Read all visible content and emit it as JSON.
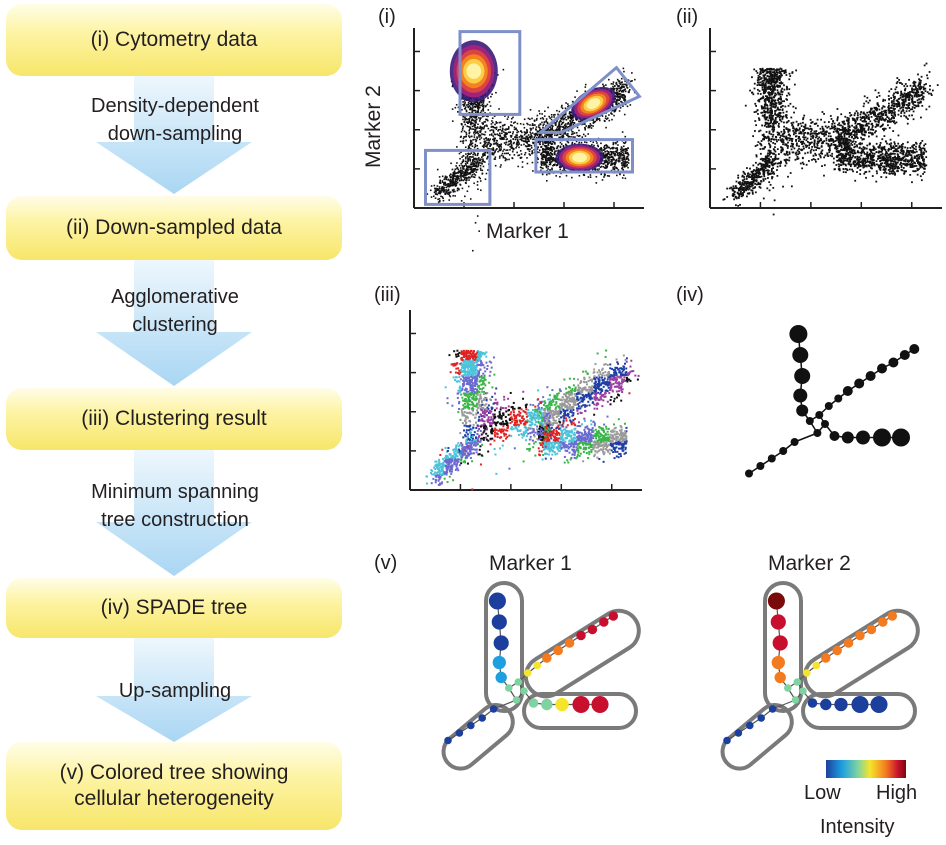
{
  "flow": {
    "steps": [
      {
        "label": "(i) Cytometry data"
      },
      {
        "label": "(ii) Down-sampled data"
      },
      {
        "label": "(iii) Clustering result"
      },
      {
        "label": "(iv) SPADE tree"
      },
      {
        "label_line1": "(v) Colored tree showing",
        "label_line2": "cellular heterogeneity"
      }
    ],
    "arrows": [
      {
        "line1": "Density-dependent",
        "line2": "down-sampling"
      },
      {
        "line1": "Agglomerative",
        "line2": "clustering"
      },
      {
        "line1": "Minimum spanning",
        "line2": "tree construction"
      },
      {
        "line1": "Up-sampling",
        "line2": ""
      }
    ]
  },
  "panels": {
    "i": {
      "label": "(i)",
      "xlabel": "Marker 1",
      "ylabel": "Marker 2"
    },
    "ii": {
      "label": "(ii)"
    },
    "iii": {
      "label": "(iii)"
    },
    "iv": {
      "label": "(iv)"
    },
    "v": {
      "label": "(v)",
      "titles": [
        "Marker 1",
        "Marker 2"
      ]
    }
  },
  "legend": {
    "low": "Low",
    "high": "High",
    "title": "Intensity",
    "colors": [
      "#1c3f9e",
      "#1e9fe0",
      "#7fd3a0",
      "#f5e52a",
      "#f47a1f",
      "#c8102e",
      "#7a0a0a"
    ]
  },
  "colors": {
    "box_fill": "#f7e66a",
    "arrow": "#a9d6f3",
    "gate": "#7f8fc8",
    "cluster_palette": [
      "#1f3fa6",
      "#e02323",
      "#3bb54a",
      "#9b3fa0",
      "#4dc3d9",
      "#9a9a9a",
      "#111111",
      "#6a6ad0"
    ]
  }
}
